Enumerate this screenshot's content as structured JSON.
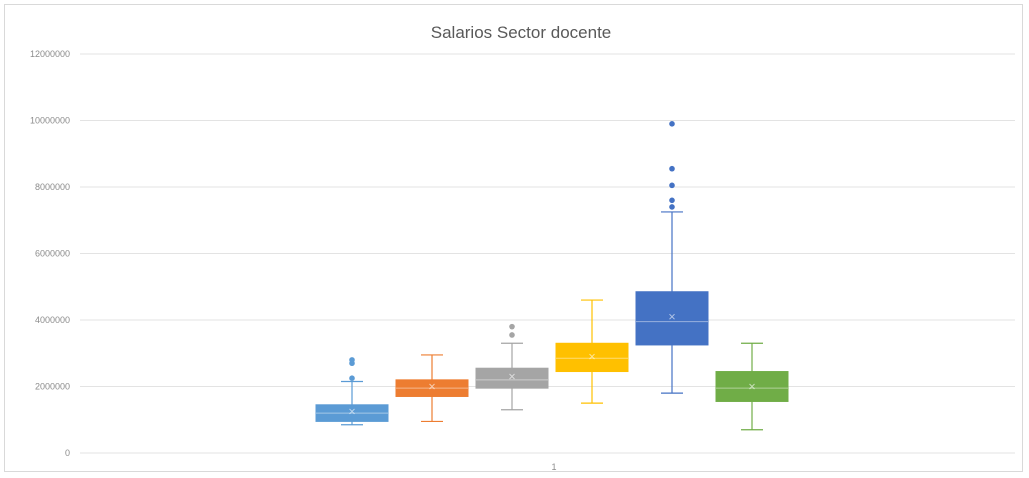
{
  "chart_data": {
    "type": "boxplot",
    "title": "Salarios Sector docente",
    "xlabel": "",
    "ylabel": "",
    "x_tick_labels": [
      "1"
    ],
    "ylim": [
      0,
      12000000
    ],
    "y_ticks": [
      {
        "value": 0,
        "label": "0"
      },
      {
        "value": 2000000,
        "label": "2000000"
      },
      {
        "value": 4000000,
        "label": "4000000"
      },
      {
        "value": 6000000,
        "label": "6000000"
      },
      {
        "value": 8000000,
        "label": "8000000"
      },
      {
        "value": 10000000,
        "label": "10000000"
      },
      {
        "value": 12000000,
        "label": "12000000"
      }
    ],
    "grid": true,
    "legend": "none",
    "boxes": [
      {
        "color": "#5b9bd5",
        "min": 850000,
        "q1": 950000,
        "median": 1200000,
        "q3": 1450000,
        "max": 2150000,
        "mean": 1250000,
        "outliers": [
          2250000,
          2700000,
          2800000
        ]
      },
      {
        "color": "#ed7d31",
        "min": 950000,
        "q1": 1700000,
        "median": 1950000,
        "q3": 2200000,
        "max": 2950000,
        "mean": 2000000,
        "outliers": []
      },
      {
        "color": "#a5a5a5",
        "min": 1300000,
        "q1": 1950000,
        "median": 2200000,
        "q3": 2550000,
        "max": 3300000,
        "mean": 2300000,
        "outliers": [
          3550000,
          3800000
        ]
      },
      {
        "color": "#ffc000",
        "min": 1500000,
        "q1": 2450000,
        "median": 2850000,
        "q3": 3300000,
        "max": 4600000,
        "mean": 2900000,
        "outliers": []
      },
      {
        "color": "#4472c4",
        "min": 1800000,
        "q1": 3250000,
        "median": 3950000,
        "q3": 4850000,
        "max": 7250000,
        "mean": 4100000,
        "outliers": [
          7400000,
          7600000,
          8050000,
          8550000,
          9900000
        ]
      },
      {
        "color": "#70ad47",
        "min": 700000,
        "q1": 1550000,
        "median": 1950000,
        "q3": 2450000,
        "max": 3300000,
        "mean": 2000000,
        "outliers": []
      }
    ]
  }
}
